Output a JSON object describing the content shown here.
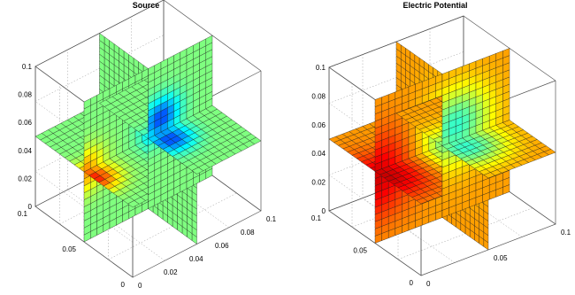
{
  "chart_data": [
    {
      "type": "heatmap",
      "plot": "3d-slice",
      "title": "Source",
      "grid_cells": 20,
      "color_scale": "jet",
      "field": {
        "baseline": 0.5,
        "features": [
          {
            "kind": "negative-peak",
            "center": [
              0.06,
              0.04,
              0.06
            ],
            "amplitude": 0.5,
            "width": 0.01
          },
          {
            "kind": "positive-peak",
            "center": [
              0.0,
              0.04,
              0.05
            ],
            "amplitude": 0.35,
            "width": 0.011
          }
        ]
      },
      "axes": {
        "z_ticks": [
          "0",
          "0.02",
          "0.04",
          "0.06",
          "0.08",
          "0.1"
        ],
        "y_ticks": [
          "0",
          "0.05",
          "0.1"
        ],
        "x_ticks": [
          "0",
          "0.02",
          "0.04",
          "0.06",
          "0.08",
          "0.1"
        ],
        "xlim": [
          0,
          0.1
        ],
        "ylim": [
          0,
          0.1
        ],
        "zlim": [
          0,
          0.1
        ]
      },
      "grid": true
    },
    {
      "type": "heatmap",
      "plot": "3d-slice",
      "title": "Electric Potential",
      "grid_cells": 20,
      "color_scale": "jet",
      "field": {
        "baseline": 0.72,
        "features": [
          {
            "kind": "negative-peak",
            "center": [
              0.06,
              0.04,
              0.06
            ],
            "amplitude": 0.35,
            "width": 0.018
          },
          {
            "kind": "positive-peak",
            "center": [
              0.0,
              0.04,
              0.045
            ],
            "amplitude": 0.22,
            "width": 0.022
          }
        ]
      },
      "axes": {
        "z_ticks": [
          "0",
          "0.02",
          "0.04",
          "0.06",
          "0.08",
          "0.1"
        ],
        "y_ticks": [
          "0",
          "0.05",
          "0.1"
        ],
        "x_ticks": [
          "0",
          "0.05",
          "0.1"
        ],
        "xlim": [
          0,
          0.1
        ],
        "ylim": [
          0,
          0.1
        ],
        "zlim": [
          0,
          0.1
        ]
      },
      "grid": true
    }
  ]
}
